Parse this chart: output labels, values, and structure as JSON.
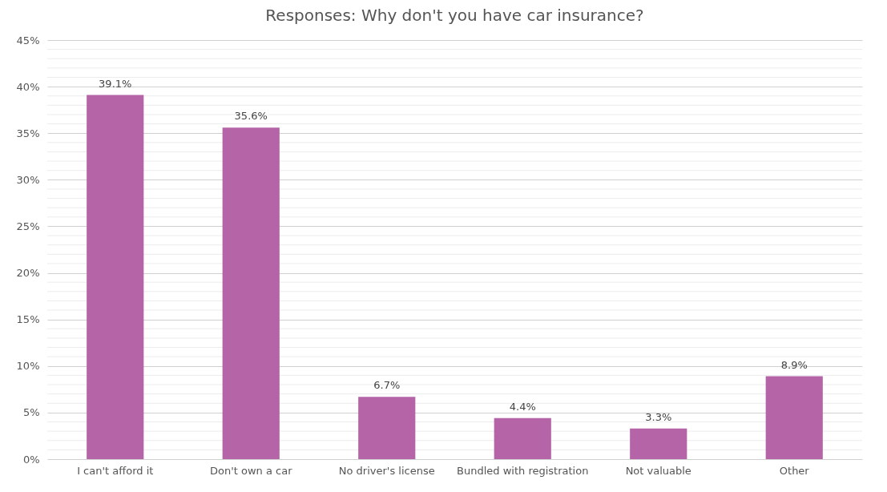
{
  "chart_data": {
    "type": "bar",
    "title": "Responses: Why don't you have car insurance?",
    "categories": [
      "I can't afford it",
      "Don't own a car",
      "No driver's license",
      "Bundled with registration",
      "Not valuable",
      "Other"
    ],
    "values": [
      39.1,
      35.6,
      6.7,
      4.4,
      3.3,
      8.9
    ],
    "value_labels": [
      "39.1%",
      "35.6%",
      "6.7%",
      "4.4%",
      "3.3%",
      "8.9%"
    ],
    "color": "#b565a7",
    "ylim": [
      0,
      45
    ],
    "yticks": [
      {
        "value": 0,
        "label": "0%"
      },
      {
        "value": 5,
        "label": "5%"
      },
      {
        "value": 10,
        "label": "10%"
      },
      {
        "value": 15,
        "label": "15%"
      },
      {
        "value": 20,
        "label": "20%"
      },
      {
        "value": 25,
        "label": "25%"
      },
      {
        "value": 30,
        "label": "30%"
      },
      {
        "value": 35,
        "label": "35%"
      },
      {
        "value": 40,
        "label": "40%"
      },
      {
        "value": 45,
        "label": "45%"
      },
      {
        "value": 1,
        "label": null
      },
      {
        "value": 2,
        "label": null
      },
      {
        "value": 3,
        "label": null
      },
      {
        "value": 4,
        "label": null
      },
      {
        "value": 6,
        "label": null
      },
      {
        "value": 7,
        "label": null
      },
      {
        "value": 8,
        "label": null
      },
      {
        "value": 9,
        "label": null
      },
      {
        "value": 11,
        "label": null
      },
      {
        "value": 12,
        "label": null
      },
      {
        "value": 13,
        "label": null
      },
      {
        "value": 14,
        "label": null
      },
      {
        "value": 16,
        "label": null
      },
      {
        "value": 17,
        "label": null
      },
      {
        "value": 18,
        "label": null
      },
      {
        "value": 19,
        "label": null
      },
      {
        "value": 21,
        "label": null
      },
      {
        "value": 22,
        "label": null
      },
      {
        "value": 23,
        "label": null
      },
      {
        "value": 24,
        "label": null
      },
      {
        "value": 26,
        "label": null
      },
      {
        "value": 27,
        "label": null
      },
      {
        "value": 28,
        "label": null
      },
      {
        "value": 29,
        "label": null
      },
      {
        "value": 31,
        "label": null
      },
      {
        "value": 32,
        "label": null
      },
      {
        "value": 33,
        "label": null
      },
      {
        "value": 34,
        "label": null
      },
      {
        "value": 36,
        "label": null
      },
      {
        "value": 37,
        "label": null
      },
      {
        "value": 38,
        "label": null
      },
      {
        "value": 39,
        "label": null
      },
      {
        "value": 41,
        "label": null
      },
      {
        "value": 42,
        "label": null
      },
      {
        "value": 43,
        "label": null
      },
      {
        "value": 44,
        "label": null
      }
    ],
    "grid": true
  }
}
